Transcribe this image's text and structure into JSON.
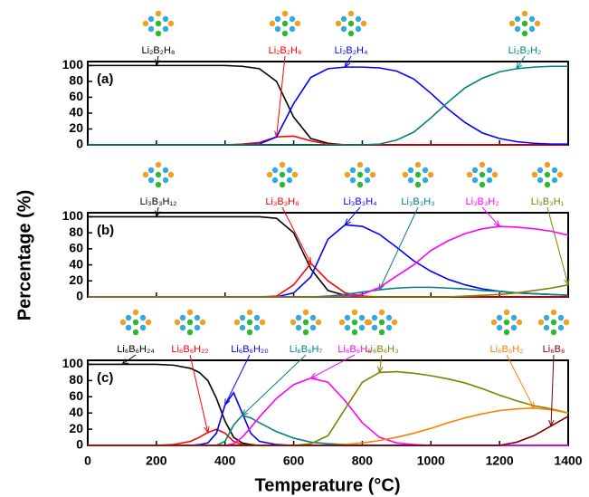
{
  "chart_data": [
    {
      "type": "line",
      "title": "(a)",
      "x": [
        0,
        50,
        100,
        150,
        200,
        250,
        300,
        350,
        400,
        450,
        500,
        550,
        600,
        650,
        700,
        750,
        800,
        850,
        900,
        950,
        1000,
        1050,
        1100,
        1150,
        1200,
        1250,
        1300,
        1350,
        1400
      ],
      "xlim": [
        0,
        1400
      ],
      "ylim": [
        0,
        105
      ],
      "yticks": [
        0,
        20,
        40,
        60,
        80,
        100
      ],
      "series": [
        {
          "name": "Li₂B₂H₈",
          "color": "#000000",
          "values": [
            100,
            100,
            100,
            100,
            100,
            100,
            100,
            100,
            100,
            99,
            96,
            80,
            35,
            8,
            2,
            0,
            0,
            0,
            0,
            0,
            0,
            0,
            0,
            0,
            0,
            0,
            0,
            0,
            0
          ]
        },
        {
          "name": "Li₂B₂H₆",
          "color": "#ff0000",
          "values": [
            0,
            0,
            0,
            0,
            0,
            0,
            0,
            0,
            0,
            1,
            3,
            10,
            11,
            5,
            1,
            0,
            0,
            0,
            0,
            0,
            0,
            0,
            0,
            0,
            0,
            0,
            0,
            0,
            0
          ]
        },
        {
          "name": "Li₂B₂H₄",
          "color": "#0000ff",
          "values": [
            0,
            0,
            0,
            0,
            0,
            0,
            0,
            0,
            0,
            0,
            1,
            10,
            52,
            85,
            96,
            98,
            98,
            97,
            93,
            83,
            65,
            45,
            28,
            15,
            8,
            4,
            2,
            1,
            1
          ]
        },
        {
          "name": "Li₂B₂H₂",
          "color": "#008080",
          "values": [
            0,
            0,
            0,
            0,
            0,
            0,
            0,
            0,
            0,
            0,
            0,
            0,
            0,
            0,
            0,
            0,
            0,
            1,
            6,
            16,
            34,
            54,
            72,
            84,
            92,
            96,
            98,
            99,
            99
          ]
        }
      ]
    },
    {
      "type": "line",
      "title": "(b)",
      "ylabel": "Percentage (%)",
      "x": [
        0,
        50,
        100,
        150,
        200,
        250,
        300,
        350,
        400,
        450,
        500,
        550,
        600,
        650,
        700,
        750,
        800,
        850,
        900,
        950,
        1000,
        1050,
        1100,
        1150,
        1200,
        1250,
        1300,
        1350,
        1400
      ],
      "xlim": [
        0,
        1400
      ],
      "ylim": [
        0,
        105
      ],
      "yticks": [
        0,
        20,
        40,
        60,
        80,
        100
      ],
      "series": [
        {
          "name": "Li₃B₃H₁₂",
          "color": "#000000",
          "values": [
            100,
            100,
            100,
            100,
            100,
            100,
            100,
            100,
            100,
            100,
            100,
            98,
            80,
            35,
            8,
            2,
            0,
            0,
            0,
            0,
            0,
            0,
            0,
            0,
            0,
            0,
            0,
            0,
            0
          ]
        },
        {
          "name": "Li₃B₃H₈",
          "color": "#ff0000",
          "values": [
            0,
            0,
            0,
            0,
            0,
            0,
            0,
            0,
            0,
            0,
            0,
            1,
            15,
            42,
            20,
            5,
            1,
            0,
            0,
            0,
            0,
            0,
            0,
            0,
            0,
            0,
            0,
            0,
            0
          ]
        },
        {
          "name": "Li₃B₃H₄",
          "color": "#0000ff",
          "values": [
            0,
            0,
            0,
            0,
            0,
            0,
            0,
            0,
            0,
            0,
            0,
            0,
            5,
            25,
            72,
            90,
            88,
            78,
            62,
            45,
            32,
            22,
            15,
            10,
            7,
            5,
            4,
            3,
            2
          ]
        },
        {
          "name": "Li₃B₃H₃",
          "color": "#008080",
          "values": [
            0,
            0,
            0,
            0,
            0,
            0,
            0,
            0,
            0,
            0,
            0,
            0,
            0,
            0,
            1,
            3,
            6,
            9,
            11,
            12,
            12,
            11,
            10,
            8,
            7,
            5,
            4,
            3,
            2
          ]
        },
        {
          "name": "Li₃B₃H₂",
          "color": "#ff00ff",
          "values": [
            0,
            0,
            0,
            0,
            0,
            0,
            0,
            0,
            0,
            0,
            0,
            0,
            0,
            0,
            0,
            1,
            3,
            12,
            26,
            40,
            58,
            70,
            79,
            85,
            88,
            87,
            85,
            82,
            77
          ]
        },
        {
          "name": "Li₃B₃H₁",
          "color": "#808000",
          "values": [
            0,
            0,
            0,
            0,
            0,
            0,
            0,
            0,
            0,
            0,
            0,
            0,
            0,
            0,
            0,
            0,
            0,
            0,
            0,
            0,
            0,
            0,
            1,
            2,
            3,
            5,
            8,
            11,
            15
          ]
        }
      ]
    },
    {
      "type": "line",
      "title": "(c)",
      "xlabel": "Temperature (°C)",
      "x": [
        0,
        50,
        100,
        150,
        200,
        250,
        300,
        325,
        350,
        375,
        400,
        425,
        450,
        475,
        500,
        550,
        600,
        650,
        700,
        750,
        800,
        850,
        900,
        950,
        1000,
        1050,
        1100,
        1150,
        1200,
        1250,
        1300,
        1350,
        1400
      ],
      "xlim": [
        0,
        1400
      ],
      "xticks": [
        0,
        200,
        400,
        600,
        800,
        1000,
        1200,
        1400
      ],
      "ylim": [
        0,
        105
      ],
      "yticks": [
        0,
        20,
        40,
        60,
        80,
        100
      ],
      "series": [
        {
          "name": "Li₆B₆H₂₄",
          "color": "#000000",
          "values": [
            100,
            100,
            100,
            100,
            100,
            99,
            95,
            90,
            80,
            58,
            30,
            10,
            3,
            1,
            0,
            0,
            0,
            0,
            0,
            0,
            0,
            0,
            0,
            0,
            0,
            0,
            0,
            0,
            0,
            0,
            0,
            0,
            0
          ]
        },
        {
          "name": "Li₆B₆H₂₂",
          "color": "#ff0000",
          "values": [
            0,
            0,
            0,
            0,
            0,
            1,
            5,
            10,
            16,
            20,
            15,
            5,
            1,
            0,
            0,
            0,
            0,
            0,
            0,
            0,
            0,
            0,
            0,
            0,
            0,
            0,
            0,
            0,
            0,
            0,
            0,
            0,
            0
          ]
        },
        {
          "name": "Li₆B₆H₂₀",
          "color": "#0000ff",
          "values": [
            0,
            0,
            0,
            0,
            0,
            0,
            0,
            1,
            3,
            15,
            50,
            65,
            40,
            15,
            5,
            1,
            0,
            0,
            0,
            0,
            0,
            0,
            0,
            0,
            0,
            0,
            0,
            0,
            0,
            0,
            0,
            0,
            0
          ]
        },
        {
          "name": "Li₆B₆H₇",
          "color": "#008080",
          "values": [
            0,
            0,
            0,
            0,
            0,
            0,
            0,
            0,
            0,
            0,
            5,
            25,
            37,
            34,
            28,
            17,
            9,
            4,
            2,
            1,
            0,
            0,
            0,
            0,
            0,
            0,
            0,
            0,
            0,
            0,
            0,
            0,
            0
          ]
        },
        {
          "name": "Li₆B₆H₆",
          "color": "#ff00ff",
          "values": [
            0,
            0,
            0,
            0,
            0,
            0,
            0,
            0,
            0,
            0,
            0,
            2,
            10,
            22,
            35,
            58,
            75,
            83,
            78,
            55,
            28,
            10,
            3,
            1,
            0,
            0,
            0,
            0,
            0,
            0,
            0,
            0,
            0
          ]
        },
        {
          "name": "Li₆B₆H₃",
          "color": "#808000",
          "values": [
            0,
            0,
            0,
            0,
            0,
            0,
            0,
            0,
            0,
            0,
            0,
            0,
            0,
            0,
            0,
            0,
            0,
            2,
            12,
            45,
            78,
            90,
            91,
            89,
            86,
            82,
            77,
            70,
            62,
            55,
            49,
            45,
            40
          ]
        },
        {
          "name": "Li₆B₆H₂",
          "color": "#ff8000",
          "values": [
            0,
            0,
            0,
            0,
            0,
            0,
            0,
            0,
            0,
            0,
            0,
            0,
            0,
            0,
            0,
            0,
            0,
            0,
            0,
            1,
            3,
            6,
            10,
            15,
            21,
            28,
            34,
            39,
            43,
            45,
            46,
            44,
            40
          ]
        },
        {
          "name": "Li₆B₆",
          "color": "#800000",
          "values": [
            0,
            0,
            0,
            0,
            0,
            0,
            0,
            0,
            0,
            0,
            0,
            0,
            0,
            0,
            0,
            0,
            0,
            0,
            0,
            0,
            0,
            0,
            0,
            0,
            0,
            0,
            0,
            0,
            0,
            4,
            12,
            24,
            36
          ]
        }
      ]
    }
  ]
}
